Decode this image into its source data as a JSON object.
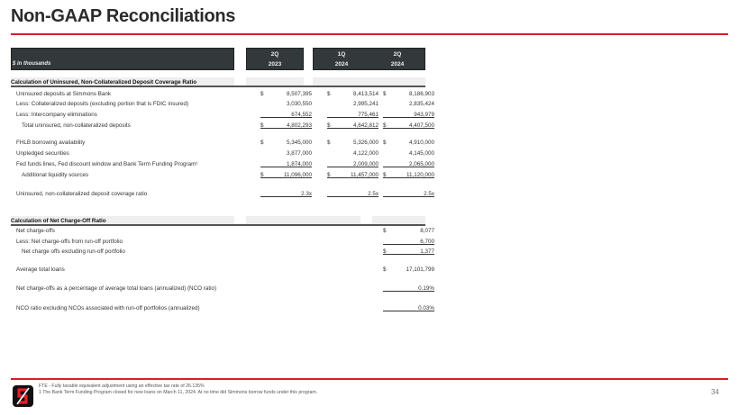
{
  "title": "Non-GAAP Reconciliations",
  "table_header": {
    "units": "$ in thousands",
    "columns": [
      {
        "q": "2Q",
        "y": "2023"
      },
      {
        "q": "1Q",
        "y": "2024"
      },
      {
        "q": "2Q",
        "y": "2024"
      }
    ]
  },
  "section1": {
    "heading": "Calculation of Uninsured, Non-Collateralized Deposit Coverage Ratio",
    "rows": [
      {
        "label": "Uninsured deposits at Simmons Bank",
        "values": [
          "8,507,395",
          "8,413,514",
          "8,186,903"
        ],
        "dollar": true,
        "underline": false,
        "indent": false
      },
      {
        "label": "Less: Collateralized deposits (excluding portion that is FDIC insured)",
        "values": [
          "3,030,550",
          "2,995,241",
          "2,835,424"
        ],
        "dollar": false,
        "underline": false,
        "indent": false
      },
      {
        "label": "Less: Intercompany eliminations",
        "values": [
          "674,552",
          "775,461",
          "943,979"
        ],
        "dollar": false,
        "underline": true,
        "indent": false
      },
      {
        "label": "Total uninsured, non-collateralized deposits",
        "values": [
          "4,802,293",
          "4,642,812",
          "4,407,500"
        ],
        "dollar": true,
        "underline": true,
        "indent": true
      },
      {
        "label": "FHLB borrowing availability",
        "values": [
          "5,345,000",
          "5,326,000",
          "4,910,000"
        ],
        "dollar": true,
        "underline": false,
        "indent": false
      },
      {
        "label": "Unpledged securities",
        "values": [
          "3,877,000",
          "4,122,000",
          "4,145,000"
        ],
        "dollar": false,
        "underline": false,
        "indent": false
      },
      {
        "label": "Fed funds lines, Fed discount window and Bank Term Funding Program¹",
        "values": [
          "1,874,000",
          "2,009,000",
          "2,065,000"
        ],
        "dollar": false,
        "underline": true,
        "indent": false
      },
      {
        "label": "Additional liquidity sources",
        "values": [
          "11,096,000",
          "11,457,000",
          "11,120,000"
        ],
        "dollar": true,
        "underline": true,
        "indent": true
      },
      {
        "label": "Uninsured, non-collateralized deposit coverage ratio",
        "values": [
          "2.3x",
          "2.5x",
          "2.5x"
        ],
        "dollar": false,
        "underline": true,
        "indent": false
      }
    ]
  },
  "section2": {
    "heading": "Calculation of Net Charge-Off Ratio",
    "rows": [
      {
        "label": "Net charge-offs",
        "values": [
          "",
          "",
          "8,077"
        ],
        "dollar": true,
        "underline": false,
        "indent": false
      },
      {
        "label": "Less: Net charge-offs from run-off portfolio",
        "values": [
          "",
          "",
          "6,700"
        ],
        "dollar": false,
        "underline": true,
        "indent": false
      },
      {
        "label": "Net charge offs excluding run-off portfolio",
        "values": [
          "",
          "",
          "1,377"
        ],
        "dollar": true,
        "underline": true,
        "indent": true
      },
      {
        "label": "Average total loans",
        "values": [
          "",
          "",
          "17,101,799"
        ],
        "dollar": true,
        "underline": false,
        "indent": false
      },
      {
        "label": "Net charge-offs as a percentage of average total loans (annualized) (NCO ratio)",
        "values": [
          "",
          "",
          "0.19%"
        ],
        "dollar": false,
        "underline": true,
        "indent": false
      },
      {
        "label": "NCO ratio excluding NCOs associated with run-off portfolios (annualized)",
        "values": [
          "",
          "",
          "0.03%"
        ],
        "dollar": false,
        "underline": true,
        "indent": false
      }
    ]
  },
  "footnotes": [
    "FTE - Fully taxable equivalent adjustment using an effective tax rate of 26.135%",
    "1   The Bank Term Funding Program closed for new loans on March 11, 2024. At no time did Simmons borrow funds under this program."
  ],
  "page_number": "34",
  "logo_text": "Simmons",
  "colors": {
    "accent": "#d62027",
    "header_bg": "#33383a"
  }
}
